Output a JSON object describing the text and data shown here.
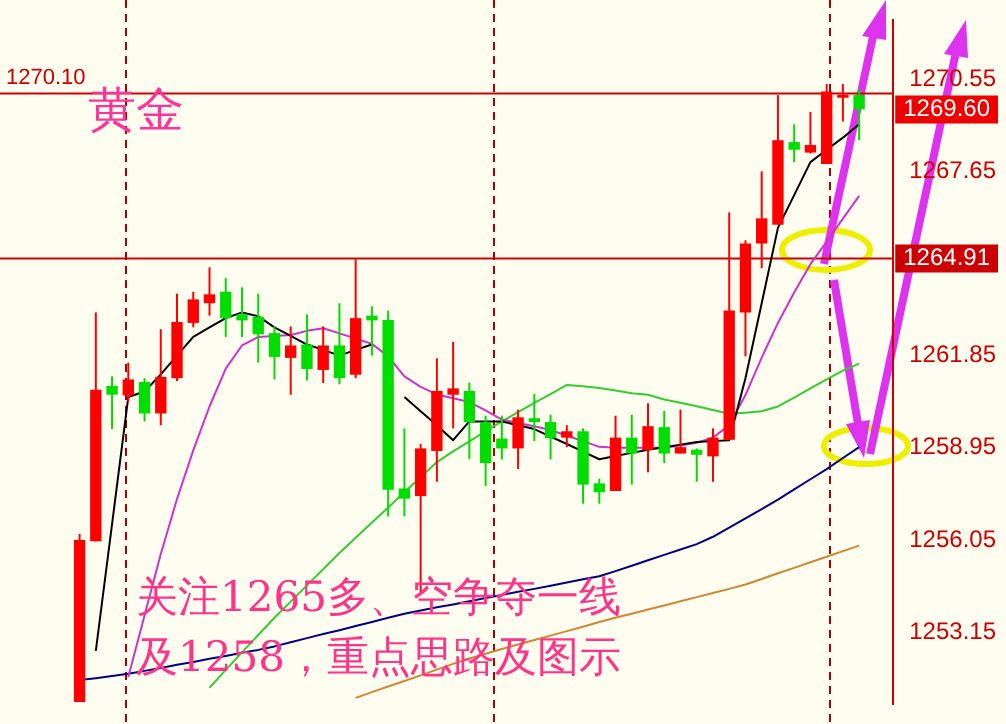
{
  "chart_data": {
    "type": "candlestick",
    "title": "黄金",
    "categories": [
      null,
      null,
      null,
      null,
      null,
      null,
      null,
      null,
      null,
      null,
      null,
      null,
      null,
      null,
      null,
      null,
      null,
      null,
      null,
      null,
      null,
      null,
      null,
      null,
      null,
      null,
      null,
      null,
      null,
      null,
      null,
      null,
      null,
      null,
      null,
      null,
      null,
      null,
      null,
      null,
      null,
      null,
      null,
      null,
      null,
      null,
      null,
      null,
      null
    ],
    "ohlc": [
      [
        1250.95,
        1256.24,
        1250.95,
        1256.05
      ],
      [
        1256.01,
        1263.21,
        1256.0,
        1260.78
      ],
      [
        1260.9,
        1261.2,
        1259.54,
        1260.62
      ],
      [
        1260.6,
        1261.63,
        1260.4,
        1261.1
      ],
      [
        1261.02,
        1261.14,
        1259.78,
        1260.03
      ],
      [
        1260.03,
        1262.68,
        1259.66,
        1261.18
      ],
      [
        1261.14,
        1263.8,
        1261.05,
        1262.91
      ],
      [
        1262.88,
        1263.86,
        1262.74,
        1263.62
      ],
      [
        1263.5,
        1264.63,
        1263.11,
        1263.78
      ],
      [
        1263.86,
        1264.29,
        1262.44,
        1263.03
      ],
      [
        1263.15,
        1264.0,
        1262.44,
        1262.96
      ],
      [
        1263.07,
        1263.8,
        1261.63,
        1262.52
      ],
      [
        1262.56,
        1262.77,
        1261.1,
        1261.81
      ],
      [
        1261.78,
        1262.77,
        1260.62,
        1262.17
      ],
      [
        1262.2,
        1263.15,
        1261.07,
        1261.43
      ],
      [
        1261.4,
        1262.77,
        1260.99,
        1262.17
      ],
      [
        1262.17,
        1263.5,
        1260.95,
        1261.14
      ],
      [
        1261.25,
        1264.88,
        1261.14,
        1263.03
      ],
      [
        1263.11,
        1263.4,
        1261.85,
        1262.96
      ],
      [
        1262.97,
        1263.27,
        1256.79,
        1257.63
      ],
      [
        1257.67,
        1259.56,
        1256.79,
        1257.35
      ],
      [
        1257.43,
        1259.07,
        1254.39,
        1258.93
      ],
      [
        1258.85,
        1261.77,
        1257.88,
        1260.74
      ],
      [
        1260.62,
        1262.28,
        1259.56,
        1260.82
      ],
      [
        1260.74,
        1261.0,
        1258.59,
        1259.76
      ],
      [
        1259.76,
        1259.96,
        1257.75,
        1258.47
      ],
      [
        1259.24,
        1259.96,
        1258.58,
        1258.93
      ],
      [
        1258.93,
        1260.15,
        1258.28,
        1259.91
      ],
      [
        1259.88,
        1260.64,
        1259.16,
        1259.76
      ],
      [
        1259.76,
        1259.99,
        1258.58,
        1259.25
      ],
      [
        1259.27,
        1259.66,
        1258.97,
        1259.47
      ],
      [
        1259.47,
        1259.56,
        1257.19,
        1257.79
      ],
      [
        1257.83,
        1257.98,
        1257.19,
        1257.55
      ],
      [
        1257.59,
        1259.96,
        1257.59,
        1259.27
      ],
      [
        1259.27,
        1259.99,
        1257.79,
        1258.77
      ],
      [
        1258.88,
        1260.35,
        1258.18,
        1259.63
      ],
      [
        1259.6,
        1260.11,
        1258.47,
        1258.77
      ],
      [
        1258.77,
        1260.15,
        1258.77,
        1258.97
      ],
      [
        1258.89,
        1258.93,
        1257.88,
        1258.73
      ],
      [
        1258.68,
        1259.56,
        1257.88,
        1259.27
      ],
      [
        1259.2,
        1266.36,
        1259.2,
        1263.27
      ],
      [
        1263.21,
        1265.48,
        1261.83,
        1265.38
      ],
      [
        1265.38,
        1267.65,
        1264.6,
        1266.17
      ],
      [
        1265.97,
        1270.05,
        1265.97,
        1268.63
      ],
      [
        1268.57,
        1269.13,
        1267.94,
        1268.33
      ],
      [
        1268.24,
        1269.52,
        1268.21,
        1268.48
      ],
      [
        1267.88,
        1270.4,
        1267.88,
        1270.16
      ],
      [
        1269.98,
        1270.4,
        1269.22,
        1270.06
      ],
      [
        1270.05,
        1270.25,
        1268.63,
        1269.6
      ]
    ],
    "colors": [
      "#ff0000",
      "#ff0000",
      "#00dd00",
      "#ff0000",
      "#00dd00",
      "#ff0000",
      "#ff0000",
      "#ff0000",
      "#ff0000",
      "#00dd00",
      "#00dd00",
      "#00dd00",
      "#00dd00",
      "#ff0000",
      "#00dd00",
      "#ff0000",
      "#00dd00",
      "#ff0000",
      "#00dd00",
      "#00dd00",
      "#00dd00",
      "#ff0000",
      "#ff0000",
      "#ff0000",
      "#00dd00",
      "#00dd00",
      "#00dd00",
      "#ff0000",
      "#00dd00",
      "#00dd00",
      "#ff0000",
      "#00dd00",
      "#00dd00",
      "#ff0000",
      "#00dd00",
      "#ff0000",
      "#00dd00",
      "#ff0000",
      "#00dd00",
      "#ff0000",
      "#ff0000",
      "#ff0000",
      "#ff0000",
      "#ff0000",
      "#00dd00",
      "#ff0000",
      "#ff0000",
      "#ff0000",
      "#00dd00"
    ],
    "series": [
      {
        "type": "line",
        "color": "#000000",
        "values": [
          null,
          1252.56,
          1256.55,
          1260.55,
          1260.72,
          1261.26,
          1261.85,
          1262.44,
          1262.74,
          1263.03,
          1263.21,
          1263.09,
          1262.74,
          1262.47,
          1262.2,
          1262.03,
          1261.85,
          1262.03,
          1262.2,
          null,
          1260.55,
          1260.1,
          1259.66,
          1259.19,
          1259.78,
          1259.78,
          1259.78,
          1259.66,
          1259.54,
          1259.3,
          1259.07,
          1258.83,
          1258.59,
          1258.69,
          1258.79,
          1258.89,
          1258.97,
          1259.05,
          1259.13,
          1259.16,
          1259.19,
          1261.14,
          1263.5,
          1265.87,
          1266.9,
          1267.94,
          1268.33,
          1268.71,
          1269.13
        ]
      },
      {
        "type": "line",
        "color": "#cc33cc",
        "values": [
          null,
          null,
          null,
          1251.74,
          1253.67,
          1255.61,
          1257.34,
          1258.87,
          1260.25,
          1261.44,
          1262.17,
          1262.44,
          1262.47,
          1262.5,
          1262.63,
          1262.71,
          1262.55,
          1262.39,
          1262.22,
          1261.83,
          1261.2,
          1260.87,
          1260.63,
          1260.51,
          1260.39,
          1260.13,
          1259.84,
          1259.73,
          1259.63,
          1259.51,
          1259.33,
          1259.16,
          1258.98,
          1258.95,
          1258.95,
          1258.95,
          1258.95,
          1259.02,
          1259.11,
          1259.27,
          1259.66,
          1260.61,
          1261.79,
          1262.88,
          1263.84,
          1264.73,
          1265.44,
          1266.16,
          1266.88
        ]
      },
      {
        "type": "line",
        "color": "#33cc33",
        "values": [
          null,
          null,
          null,
          null,
          null,
          null,
          null,
          null,
          1251.4,
          1251.96,
          1252.51,
          1253.06,
          1253.6,
          1254.11,
          1254.62,
          1255.13,
          1255.64,
          1256.12,
          1256.6,
          1257.07,
          1257.55,
          1258.02,
          1258.5,
          1258.84,
          1259.15,
          1259.47,
          1259.78,
          1260.07,
          1260.36,
          1260.64,
          1260.93,
          1260.89,
          1260.83,
          1260.75,
          1260.67,
          1260.62,
          1260.47,
          1260.37,
          1260.26,
          1260.14,
          1260.02,
          1260.05,
          1260.1,
          1260.25,
          1260.53,
          1260.82,
          1261.1,
          1261.38,
          1261.6
        ]
      },
      {
        "type": "line",
        "color": "#000080",
        "values": [
          1251.64,
          1251.7,
          1251.77,
          1251.84,
          1251.93,
          1252.02,
          1252.12,
          1252.21,
          1252.31,
          1252.4,
          1252.5,
          1252.59,
          1252.7,
          1252.83,
          1252.96,
          1253.09,
          1253.21,
          1253.34,
          1253.47,
          1253.6,
          1253.73,
          1253.83,
          1253.93,
          1254.02,
          1254.12,
          1254.22,
          1254.32,
          1254.42,
          1254.51,
          1254.61,
          1254.71,
          1254.81,
          1254.91,
          1255.07,
          1255.24,
          1255.41,
          1255.58,
          1255.75,
          1255.92,
          1256.15,
          1256.44,
          1256.73,
          1257.02,
          1257.32,
          1257.64,
          1257.96,
          1258.28,
          1258.63,
          1258.97
        ]
      },
      {
        "type": "line",
        "color": "#cc8833",
        "values": [
          null,
          null,
          null,
          null,
          null,
          null,
          null,
          null,
          null,
          null,
          null,
          null,
          null,
          null,
          null,
          null,
          null,
          1251.08,
          1251.26,
          1251.44,
          1251.61,
          1251.79,
          1251.97,
          1252.15,
          1252.32,
          1252.47,
          1252.62,
          1252.76,
          1252.9,
          1253.04,
          1253.18,
          1253.32,
          1253.47,
          1253.6,
          1253.73,
          1253.86,
          1253.99,
          1254.12,
          1254.25,
          1254.38,
          1254.51,
          1254.65,
          1254.82,
          1255.0,
          1255.17,
          1255.35,
          1255.52,
          1255.7,
          1255.87
        ]
      }
    ],
    "ylim": [
      1250.9,
      1272.4
    ],
    "yticks": [
      1253.15,
      1256.05,
      1258.95,
      1261.85,
      1267.65,
      1270.55
    ],
    "tick_labels": "y",
    "legend": false,
    "marker": "none",
    "ref_lines": [
      {
        "axis": "y",
        "value": 1270.1,
        "label": "1270.10",
        "color": "#cc0000"
      },
      {
        "axis": "y",
        "value": 1264.91,
        "label": "1264.91",
        "color": "#cc0000"
      }
    ],
    "annotations": [
      "1269.60",
      "关注1265多、空争夺一线",
      "及1258，重点思路及图示"
    ]
  }
}
